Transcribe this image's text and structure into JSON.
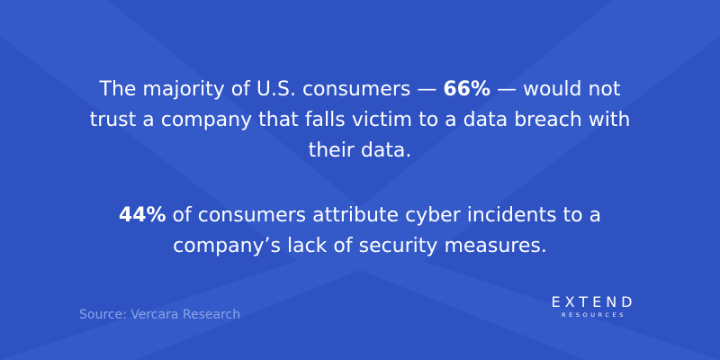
{
  "statements": [
    {
      "segments": [
        {
          "text": "The majority of U.S. consumers — ",
          "bold": false
        },
        {
          "text": "66%",
          "bold": true
        },
        {
          "text": " — would not trust a company that falls victim to a data breach with their data.",
          "bold": false
        }
      ]
    },
    {
      "segments": [
        {
          "text": "44%",
          "bold": true
        },
        {
          "text": " of consumers attribute cyber incidents to a company’s lack of security measures.",
          "bold": false
        }
      ]
    }
  ],
  "source": "Source: Vercara Research",
  "logo": {
    "name": "EXTEND",
    "tagline": "RESOURCES"
  }
}
